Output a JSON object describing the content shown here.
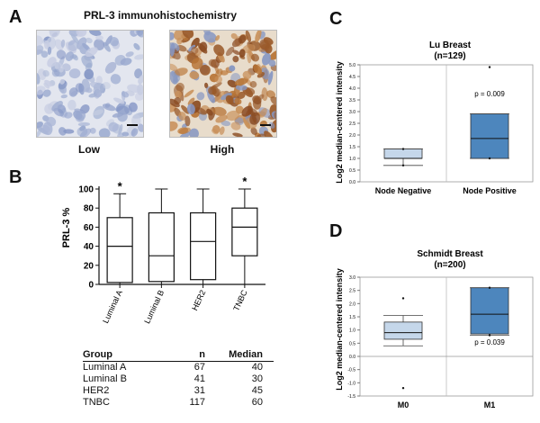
{
  "panel_labels": {
    "a": "A",
    "b": "B",
    "c": "C",
    "d": "D"
  },
  "panel_a": {
    "title": "PRL-3 immunohistochemistry",
    "low_label": "Low",
    "high_label": "High"
  },
  "table": {
    "headers": [
      "Group",
      "n",
      "Median"
    ],
    "rows": [
      {
        "group": "Luminal A",
        "n": "67",
        "median": "40"
      },
      {
        "group": "Luminal B",
        "n": "41",
        "median": "30"
      },
      {
        "group": "HER2",
        "n": "31",
        "median": "45"
      },
      {
        "group": "TNBC",
        "n": "117",
        "median": "60"
      }
    ]
  },
  "colors": {
    "box_light": "#c5d7ea",
    "box_dark": "#4d86bd",
    "stain_brown": "#9a5a2a",
    "stain_blue": "#8ea2c8"
  },
  "chart_data": [
    {
      "id": "B",
      "type": "box",
      "ylabel": "PRL-3 %",
      "ylim": [
        0,
        100
      ],
      "yticks": [
        0,
        20,
        40,
        60,
        80,
        100
      ],
      "categories": [
        "Luminal A",
        "Luminal B",
        "HER2",
        "TNBC"
      ],
      "boxes": [
        {
          "min": 0,
          "q1": 2,
          "median": 40,
          "q3": 70,
          "max": 95,
          "star": "*"
        },
        {
          "min": 0,
          "q1": 3,
          "median": 30,
          "q3": 75,
          "max": 100,
          "star": ""
        },
        {
          "min": 0,
          "q1": 5,
          "median": 45,
          "q3": 75,
          "max": 100,
          "star": ""
        },
        {
          "min": 0,
          "q1": 30,
          "median": 60,
          "q3": 80,
          "max": 100,
          "star": "*"
        }
      ]
    },
    {
      "id": "C",
      "type": "box",
      "title": "Lu Breast",
      "subtitle": "(n=129)",
      "ylabel": "Log2 median-centered intensity",
      "ylim": [
        0,
        5
      ],
      "yticks": [
        0,
        0.5,
        1,
        1.5,
        2,
        2.5,
        3,
        3.5,
        4,
        4.5,
        5
      ],
      "ytick_labels": [
        "0.0",
        "0.5",
        "1.0",
        "1.5",
        "2.0",
        "2.5",
        "3.0",
        "3.5",
        "4.0",
        "4.5",
        "5.0"
      ],
      "categories": [
        "Node Negative",
        "Node Positive"
      ],
      "annotation": "p = 0.009",
      "boxes": [
        {
          "q1": 1.0,
          "median": 1.0,
          "q3": 1.4,
          "whisker_low": 0.7,
          "whisker_high": 1.4,
          "points": [
            0.7,
            1.4
          ],
          "color": "light"
        },
        {
          "q1": 1.0,
          "median": 1.85,
          "q3": 2.9,
          "whisker_low": 1.0,
          "whisker_high": 2.9,
          "points": [
            1.0,
            4.9
          ],
          "color": "dark"
        }
      ]
    },
    {
      "id": "D",
      "type": "box",
      "title": "Schmidt Breast",
      "subtitle": "(n=200)",
      "ylabel": "Log2 median-centered intensity",
      "ylim": [
        -1.5,
        3
      ],
      "yticks": [
        -1.5,
        -1,
        -0.5,
        0,
        0.5,
        1,
        1.5,
        2,
        2.5,
        3
      ],
      "ytick_labels": [
        "-1.5",
        "-1.0",
        "-0.5",
        "0.0",
        "0.5",
        "1.0",
        "1.5",
        "2.0",
        "2.5",
        "3.0"
      ],
      "categories": [
        "M0",
        "M1"
      ],
      "annotation": "p = 0.039",
      "boxes": [
        {
          "q1": 0.65,
          "median": 0.9,
          "q3": 1.3,
          "whisker_low": 0.4,
          "whisker_high": 1.55,
          "points": [
            2.2,
            -1.2
          ],
          "color": "light"
        },
        {
          "q1": 0.85,
          "median": 1.6,
          "q3": 2.6,
          "whisker_low": 0.8,
          "whisker_high": 2.6,
          "points": [
            0.8,
            2.6
          ],
          "color": "dark"
        }
      ]
    }
  ]
}
